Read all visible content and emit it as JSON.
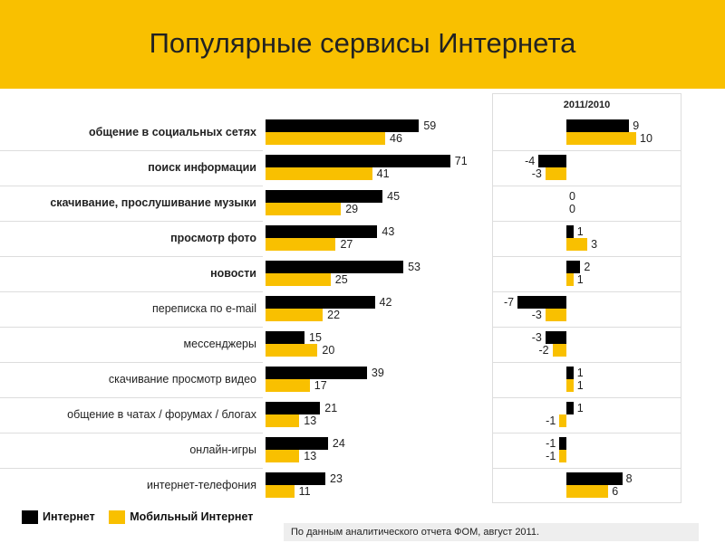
{
  "title": "Популярные сервисы Интернета",
  "colors": {
    "internet": "#000000",
    "mobile": "#F9C000",
    "header": "#F9C000"
  },
  "chart_data": {
    "type": "bar",
    "categories": [
      "общение в социальных сетях",
      "поиск информации",
      "скачивание, прослушивание музыки",
      "просмотр фото",
      "новости",
      "переписка по e-mail",
      "мессенджеры",
      "скачивание просмотр видео",
      "общение в чатах / форумах / блогах",
      "онлайн-игры",
      "интернет-телефония"
    ],
    "bold_count": 5,
    "series": [
      {
        "name": "Интернет",
        "values": [
          59,
          71,
          45,
          43,
          53,
          42,
          15,
          39,
          21,
          24,
          23
        ]
      },
      {
        "name": "Мобильный Интернет",
        "values": [
          46,
          41,
          29,
          27,
          25,
          22,
          20,
          17,
          13,
          13,
          11
        ]
      }
    ],
    "change": {
      "title": "2011/2010",
      "series": [
        {
          "name": "Интернет",
          "values": [
            9,
            -4,
            0,
            1,
            2,
            -7,
            -3,
            1,
            1,
            -1,
            8
          ]
        },
        {
          "name": "Мобильный Интернет",
          "values": [
            10,
            -3,
            0,
            3,
            1,
            -3,
            -2,
            1,
            -1,
            -1,
            6
          ]
        }
      ]
    },
    "legend": [
      "Интернет",
      "Мобильный Интернет"
    ],
    "legend_position": "bottom-left"
  },
  "note": "По данным аналитического отчета ФОМ, август 2011."
}
